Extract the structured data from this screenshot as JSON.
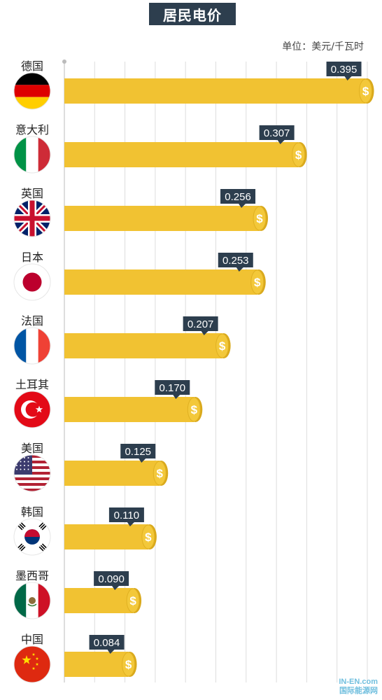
{
  "chart_data": {
    "type": "bar",
    "orientation": "horizontal",
    "title": "居民电价",
    "unit_label": "单位：美元/千瓦时",
    "categories": [
      "德国",
      "意大利",
      "英国",
      "日本",
      "法国",
      "土耳其",
      "美国",
      "韩国",
      "墨西哥",
      "中国"
    ],
    "values": [
      0.395,
      0.307,
      0.256,
      0.253,
      0.207,
      0.17,
      0.125,
      0.11,
      0.09,
      0.084
    ],
    "value_labels": [
      "0.395",
      "0.307",
      "0.256",
      "0.253",
      "0.207",
      "0.170",
      "0.125",
      "0.110",
      "0.090",
      "0.084"
    ],
    "flags": [
      "germany",
      "italy",
      "uk",
      "japan",
      "france",
      "turkey",
      "usa",
      "south-korea",
      "mexico",
      "china"
    ],
    "grid": true,
    "colors": {
      "bar": "#f1c232",
      "coin": "#f3c83a",
      "label_box": "#2d3e4e",
      "title_box": "#2d3e4e"
    }
  },
  "watermark": {
    "line1": "IN-EN.com",
    "line2": "国际能源网"
  }
}
